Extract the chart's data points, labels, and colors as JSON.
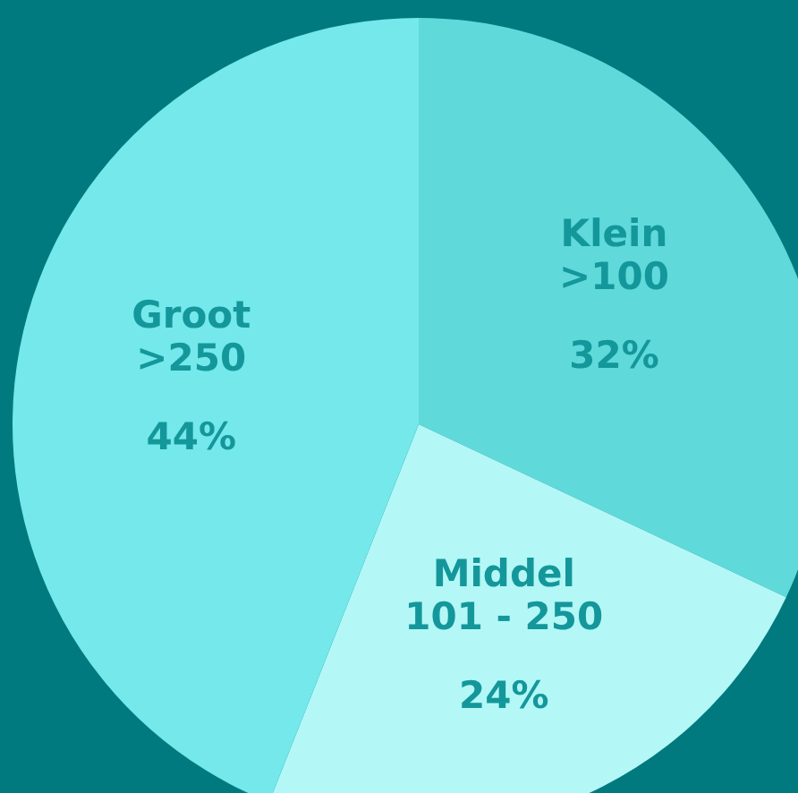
{
  "chart_data": {
    "type": "pie",
    "categories": [
      "Klein >100",
      "Middel 101 - 250",
      "Groot >250"
    ],
    "values": [
      32,
      24,
      44
    ],
    "colors": [
      "#5fd9d9",
      "#b3f7f7",
      "#74e8ea"
    ],
    "value_labels": [
      "32%",
      "24%",
      "44%"
    ],
    "legend": false
  }
}
